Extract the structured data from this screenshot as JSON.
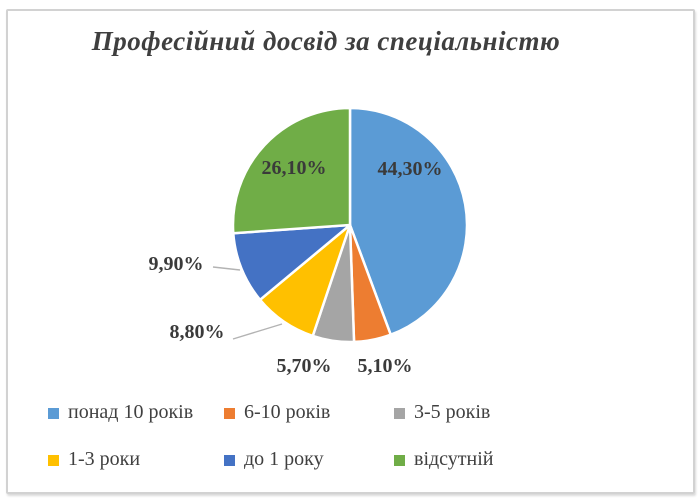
{
  "chart_data": {
    "type": "pie",
    "title": "Професійний досвід за спеціальністю",
    "direction": "clockwise",
    "start_angle_deg": 0,
    "legend_position": "bottom",
    "grid": false,
    "slices": [
      {
        "name": "понад 10 років",
        "value": 44.3,
        "label": "44,30%",
        "color": "#5B9BD5",
        "label_placement": "inside"
      },
      {
        "name": "6-10 років",
        "value": 5.1,
        "label": "5,10%",
        "color": "#ED7D31",
        "label_placement": "outside"
      },
      {
        "name": "3-5 років",
        "value": 5.7,
        "label": "5,70%",
        "color": "#A5A5A5",
        "label_placement": "outside"
      },
      {
        "name": "1-3 роки",
        "value": 8.8,
        "label": "8,80%",
        "color": "#FFC000",
        "label_placement": "outside-leader"
      },
      {
        "name": "до 1 року",
        "value": 9.9,
        "label": "9,90%",
        "color": "#4472C4",
        "label_placement": "outside-leader"
      },
      {
        "name": "відсутній",
        "value": 26.1,
        "label": "26,10%",
        "color": "#70AD47",
        "label_placement": "inside"
      }
    ]
  },
  "colors": {
    "background": "#ffffff",
    "border": "#d2d2d2",
    "title_text": "#3f3f3f",
    "label_text": "#3a3a3a",
    "legend_text": "#404040",
    "leader_line": "#b3b3b3",
    "slice_separator": "#ffffff"
  }
}
